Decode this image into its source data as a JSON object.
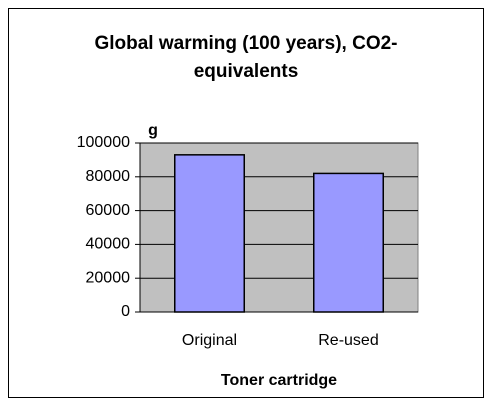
{
  "chart_data": {
    "type": "bar",
    "title": "Global warming (100 years), CO2-equivalents",
    "y_label": "g",
    "x_label": "Toner cartridge",
    "categories": [
      "Original",
      "Re-used"
    ],
    "values": [
      93000,
      82000
    ],
    "color": "#9999ff",
    "plot_background": "#c0c0c0",
    "ylim": [
      0,
      100000
    ],
    "yticks": [
      0,
      20000,
      40000,
      60000,
      80000,
      100000
    ],
    "grid": true
  }
}
